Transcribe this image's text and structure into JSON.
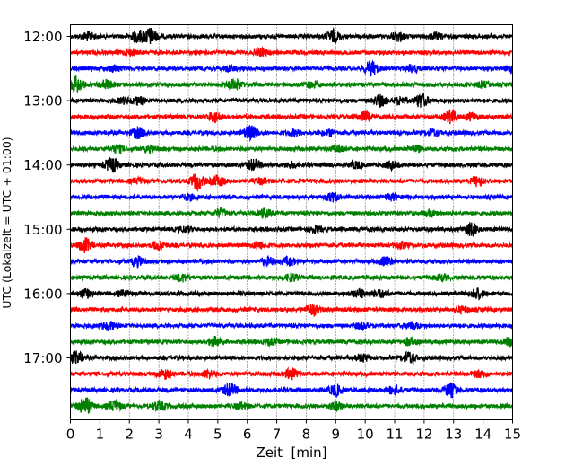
{
  "chart_data": {
    "type": "line",
    "title": "",
    "xlabel": "Zeit  [min]",
    "ylabel": "UTC (Lokalzeit = UTC + 01:00)",
    "xlim": [
      0,
      15
    ],
    "x_ticks": [
      0,
      1,
      2,
      3,
      4,
      5,
      6,
      7,
      8,
      9,
      10,
      11,
      12,
      13,
      14,
      15
    ],
    "x_tick_labels": [
      "0",
      "1",
      "2",
      "3",
      "4",
      "5",
      "6",
      "7",
      "8",
      "9",
      "10",
      "11",
      "12",
      "13",
      "14",
      "15"
    ],
    "y_ticks": [
      "12:00",
      "13:00",
      "14:00",
      "15:00",
      "16:00",
      "17:00"
    ],
    "grid": "vertical dotted lines at each minute",
    "trace_interval_min": 15,
    "colors": [
      "#000000",
      "#ff0000",
      "#0000ff",
      "#008000"
    ],
    "traces": [
      {
        "start": "12:00",
        "color": "#000000",
        "bursts": [
          [
            0.6,
            0.45
          ],
          [
            2.3,
            0.6
          ],
          [
            2.7,
            0.9
          ],
          [
            8.9,
            0.7
          ],
          [
            11.1,
            0.5
          ],
          [
            12.4,
            0.3
          ]
        ]
      },
      {
        "start": "12:15",
        "color": "#ff0000",
        "bursts": [
          [
            2.0,
            0.3
          ],
          [
            6.5,
            0.35
          ]
        ]
      },
      {
        "start": "12:30",
        "color": "#0000ff",
        "bursts": [
          [
            1.5,
            0.35
          ],
          [
            5.4,
            0.3
          ],
          [
            10.2,
            0.8
          ],
          [
            11.6,
            0.4
          ],
          [
            15.0,
            0.5
          ]
        ]
      },
      {
        "start": "12:45",
        "color": "#008000",
        "bursts": [
          [
            0.2,
            0.9
          ],
          [
            1.2,
            0.5
          ],
          [
            5.6,
            0.6
          ],
          [
            8.2,
            0.3
          ],
          [
            14.0,
            0.3
          ]
        ]
      },
      {
        "start": "13:00",
        "color": "#000000",
        "bursts": [
          [
            1.8,
            0.3
          ],
          [
            2.3,
            0.4
          ],
          [
            10.5,
            0.6
          ],
          [
            11.2,
            0.4
          ],
          [
            11.9,
            0.8
          ]
        ]
      },
      {
        "start": "13:15",
        "color": "#ff0000",
        "bursts": [
          [
            4.9,
            0.6
          ],
          [
            10.0,
            0.5
          ],
          [
            12.9,
            0.7
          ],
          [
            13.6,
            0.4
          ]
        ]
      },
      {
        "start": "13:30",
        "color": "#0000ff",
        "bursts": [
          [
            2.3,
            0.6
          ],
          [
            6.1,
            0.8
          ],
          [
            7.6,
            0.3
          ],
          [
            8.8,
            0.3
          ],
          [
            12.3,
            0.35
          ]
        ]
      },
      {
        "start": "13:45",
        "color": "#008000",
        "bursts": [
          [
            1.6,
            0.4
          ],
          [
            2.7,
            0.3
          ],
          [
            9.1,
            0.35
          ],
          [
            11.7,
            0.3
          ]
        ]
      },
      {
        "start": "14:00",
        "color": "#000000",
        "bursts": [
          [
            1.4,
            0.8
          ],
          [
            6.2,
            0.6
          ],
          [
            7.5,
            0.3
          ],
          [
            9.7,
            0.35
          ],
          [
            10.9,
            0.4
          ]
        ]
      },
      {
        "start": "14:15",
        "color": "#ff0000",
        "bursts": [
          [
            2.3,
            0.3
          ],
          [
            4.3,
            0.9
          ],
          [
            5.0,
            0.6
          ],
          [
            6.5,
            0.3
          ],
          [
            13.8,
            0.5
          ]
        ]
      },
      {
        "start": "14:30",
        "color": "#0000ff",
        "bursts": [
          [
            4.0,
            0.3
          ],
          [
            8.9,
            0.45
          ],
          [
            10.9,
            0.35
          ]
        ]
      },
      {
        "start": "14:45",
        "color": "#008000",
        "bursts": [
          [
            5.1,
            0.45
          ],
          [
            6.6,
            0.45
          ],
          [
            12.2,
            0.35
          ]
        ]
      },
      {
        "start": "15:00",
        "color": "#000000",
        "bursts": [
          [
            3.9,
            0.3
          ],
          [
            8.3,
            0.35
          ],
          [
            13.6,
            0.7
          ]
        ]
      },
      {
        "start": "15:15",
        "color": "#ff0000",
        "bursts": [
          [
            0.5,
            0.8
          ],
          [
            3.0,
            0.5
          ],
          [
            6.4,
            0.35
          ],
          [
            11.2,
            0.35
          ]
        ]
      },
      {
        "start": "15:30",
        "color": "#0000ff",
        "bursts": [
          [
            2.3,
            0.5
          ],
          [
            6.7,
            0.4
          ],
          [
            7.4,
            0.45
          ],
          [
            10.7,
            0.5
          ]
        ]
      },
      {
        "start": "15:45",
        "color": "#008000",
        "bursts": [
          [
            3.8,
            0.4
          ],
          [
            7.5,
            0.4
          ],
          [
            12.6,
            0.3
          ]
        ]
      },
      {
        "start": "16:00",
        "color": "#000000",
        "bursts": [
          [
            0.5,
            0.5
          ],
          [
            1.8,
            0.3
          ],
          [
            9.8,
            0.45
          ],
          [
            10.5,
            0.4
          ],
          [
            13.8,
            0.6
          ]
        ]
      },
      {
        "start": "16:15",
        "color": "#ff0000",
        "bursts": [
          [
            8.2,
            0.6
          ],
          [
            13.3,
            0.3
          ]
        ]
      },
      {
        "start": "16:30",
        "color": "#0000ff",
        "bursts": [
          [
            1.3,
            0.5
          ],
          [
            9.9,
            0.35
          ],
          [
            11.6,
            0.4
          ]
        ]
      },
      {
        "start": "16:45",
        "color": "#008000",
        "bursts": [
          [
            4.9,
            0.5
          ],
          [
            6.8,
            0.3
          ],
          [
            11.5,
            0.4
          ],
          [
            14.9,
            0.45
          ]
        ]
      },
      {
        "start": "17:00",
        "color": "#000000",
        "bursts": [
          [
            0.2,
            0.7
          ],
          [
            9.9,
            0.4
          ],
          [
            11.5,
            0.65
          ]
        ]
      },
      {
        "start": "17:15",
        "color": "#ff0000",
        "bursts": [
          [
            3.2,
            0.5
          ],
          [
            4.7,
            0.45
          ],
          [
            7.5,
            0.6
          ],
          [
            13.9,
            0.4
          ]
        ]
      },
      {
        "start": "17:30",
        "color": "#0000ff",
        "bursts": [
          [
            5.4,
            0.7
          ],
          [
            9.0,
            0.6
          ],
          [
            11.0,
            0.5
          ],
          [
            12.9,
            0.75
          ]
        ]
      },
      {
        "start": "17:45",
        "color": "#008000",
        "bursts": [
          [
            0.5,
            0.95
          ],
          [
            1.5,
            0.6
          ],
          [
            3.0,
            0.5
          ],
          [
            5.8,
            0.35
          ],
          [
            9.0,
            0.45
          ]
        ]
      }
    ]
  }
}
